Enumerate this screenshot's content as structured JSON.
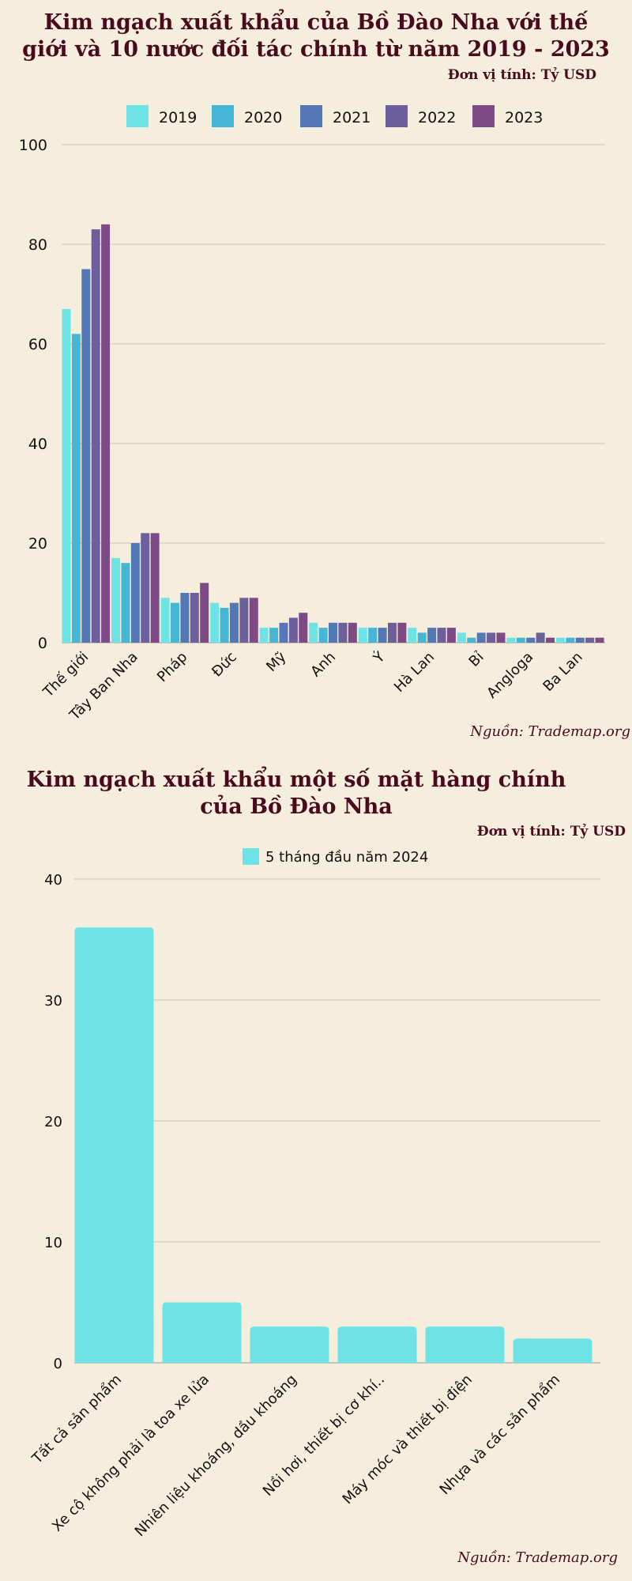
{
  "chart_data": [
    {
      "type": "bar",
      "title": "Kim ngạch xuất khẩu của Bồ Đào Nha với thế giới và 10 nước đối tác chính từ năm 2019 - 2023",
      "title_lines": [
        "Kim ngạch xuất khẩu của Bồ Đào Nha với thế",
        "giới và 10 nước đối tác chính từ năm 2019 - 2023"
      ],
      "unit": "Đơn vị tính: Tỷ USD",
      "source": "Nguồn: Trademap.org",
      "legend_position": "top-center",
      "grid": true,
      "ylim": [
        0,
        100
      ],
      "yticks": [
        0,
        20,
        40,
        60,
        80,
        100
      ],
      "categories": [
        "Thế giới",
        "Tây Ban Nha",
        "Pháp",
        "Đức",
        "Mỹ",
        "Anh",
        "Ý",
        "Hà Lan",
        "Bỉ",
        "Angloga",
        "Ba Lan"
      ],
      "series": [
        {
          "name": "2019",
          "color": "#6ee3e6",
          "values": [
            67,
            17,
            9,
            8,
            3,
            4,
            3,
            3,
            2,
            1,
            1
          ]
        },
        {
          "name": "2020",
          "color": "#45b6d6",
          "values": [
            62,
            16,
            8,
            7,
            3,
            3,
            3,
            2,
            1,
            1,
            1
          ]
        },
        {
          "name": "2021",
          "color": "#5478b5",
          "values": [
            75,
            20,
            10,
            8,
            4,
            4,
            3,
            3,
            2,
            1,
            1
          ]
        },
        {
          "name": "2022",
          "color": "#6c5f9b",
          "values": [
            83,
            22,
            10,
            9,
            5,
            4,
            4,
            3,
            2,
            2,
            1
          ]
        },
        {
          "name": "2023",
          "color": "#7e4a86",
          "values": [
            84,
            22,
            12,
            9,
            6,
            4,
            4,
            3,
            2,
            1,
            1
          ]
        }
      ]
    },
    {
      "type": "bar",
      "title": "Kim ngạch xuất khẩu một số mặt hàng chính của Bồ Đào Nha",
      "title_lines": [
        "Kim ngạch xuất khẩu một số mặt hàng chính",
        "của Bồ Đào Nha"
      ],
      "unit": "Đơn vị tính: Tỷ  USD",
      "source": "Nguồn:  Trademap.org",
      "legend_position": "top-center",
      "grid": true,
      "ylim": [
        0,
        40
      ],
      "yticks": [
        0,
        10,
        20,
        30,
        40
      ],
      "categories": [
        "Tất cả sản phẩm",
        "Xe cộ không phải là toa xe lửa",
        "Nhiên liệu khoáng, dầu khoáng",
        "Nồi hơi, thiết bị cơ khí..",
        "Máy móc và thiết bị điện",
        "Nhựa và các sản phẩm"
      ],
      "series": [
        {
          "name": "5 tháng đầu năm 2024",
          "color": "#6ee3e6",
          "values": [
            36,
            5,
            3,
            3,
            3,
            2
          ]
        }
      ]
    }
  ]
}
